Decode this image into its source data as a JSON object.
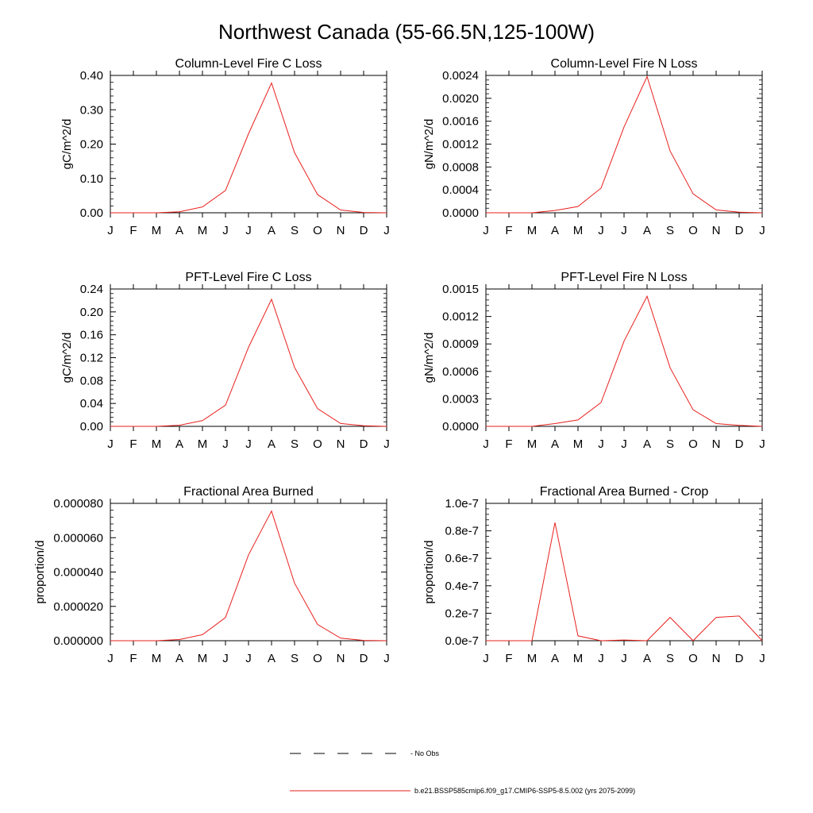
{
  "title": "Northwest Canada (55-66.5N,125-100W)",
  "chart_data": [
    {
      "type": "line",
      "title": "Column-Level Fire C Loss",
      "ylabel": "gC/m^2/d",
      "categories": [
        "J",
        "F",
        "M",
        "A",
        "M",
        "J",
        "J",
        "A",
        "S",
        "O",
        "N",
        "D",
        "J"
      ],
      "yticks": [
        "0.00",
        "0.10",
        "0.20",
        "0.30",
        "0.40"
      ],
      "ylim": [
        0,
        0.4
      ],
      "series": [
        {
          "name": "b.e21.BSSP585cmip6.f09_g17.CMIP6-SSP5-8.5.002 (yrs 2075-2099)",
          "color": "#e8201c",
          "values": [
            0,
            0,
            0,
            0.003,
            0.017,
            0.065,
            0.23,
            0.378,
            0.175,
            0.053,
            0.008,
            0.001,
            0
          ]
        }
      ]
    },
    {
      "type": "line",
      "title": "Column-Level Fire N Loss",
      "ylabel": "gN/m^2/d",
      "categories": [
        "J",
        "F",
        "M",
        "A",
        "M",
        "J",
        "J",
        "A",
        "S",
        "O",
        "N",
        "D",
        "J"
      ],
      "yticks": [
        "0.0000",
        "0.0004",
        "0.0008",
        "0.0012",
        "0.0016",
        "0.0020",
        "0.0024"
      ],
      "ylim": [
        0,
        0.0024
      ],
      "series": [
        {
          "name": "b.e21.BSSP585cmip6.f09_g17.CMIP6-SSP5-8.5.002 (yrs 2075-2099)",
          "color": "#e8201c",
          "values": [
            0,
            0,
            0,
            4e-05,
            0.00011,
            0.00043,
            0.0015,
            0.00238,
            0.00108,
            0.00033,
            5e-05,
            1e-05,
            0
          ]
        }
      ]
    },
    {
      "type": "line",
      "title": "PFT-Level Fire C Loss",
      "ylabel": "gC/m^2/d",
      "categories": [
        "J",
        "F",
        "M",
        "A",
        "M",
        "J",
        "J",
        "A",
        "S",
        "O",
        "N",
        "D",
        "J"
      ],
      "yticks": [
        "0.00",
        "0.04",
        "0.08",
        "0.12",
        "0.16",
        "0.20",
        "0.24"
      ],
      "ylim": [
        0,
        0.24
      ],
      "series": [
        {
          "name": "b.e21.BSSP585cmip6.f09_g17.CMIP6-SSP5-8.5.002 (yrs 2075-2099)",
          "color": "#e8201c",
          "values": [
            0,
            0,
            0,
            0.002,
            0.01,
            0.037,
            0.138,
            0.222,
            0.103,
            0.031,
            0.005,
            0.001,
            0
          ]
        }
      ]
    },
    {
      "type": "line",
      "title": "PFT-Level Fire N Loss",
      "ylabel": "gN/m^2/d",
      "categories": [
        "J",
        "F",
        "M",
        "A",
        "M",
        "J",
        "J",
        "A",
        "S",
        "O",
        "N",
        "D",
        "J"
      ],
      "yticks": [
        "0.0000",
        "0.0003",
        "0.0006",
        "0.0009",
        "0.0012",
        "0.0015"
      ],
      "ylim": [
        0,
        0.0015
      ],
      "series": [
        {
          "name": "b.e21.BSSP585cmip6.f09_g17.CMIP6-SSP5-8.5.002 (yrs 2075-2099)",
          "color": "#e8201c",
          "values": [
            0,
            0,
            0,
            3e-05,
            7e-05,
            0.00026,
            0.00093,
            0.00142,
            0.00064,
            0.00018,
            3e-05,
            1e-05,
            0
          ]
        }
      ]
    },
    {
      "type": "line",
      "title": "Fractional Area Burned",
      "ylabel": "proportion/d",
      "categories": [
        "J",
        "F",
        "M",
        "A",
        "M",
        "J",
        "J",
        "A",
        "S",
        "O",
        "N",
        "D",
        "J"
      ],
      "yticks": [
        "0.000000",
        "0.000020",
        "0.000040",
        "0.000060",
        "0.000080"
      ],
      "ylim": [
        0,
        8e-05
      ],
      "series": [
        {
          "name": "b.e21.BSSP585cmip6.f09_g17.CMIP6-SSP5-8.5.002 (yrs 2075-2099)",
          "color": "#e8201c",
          "values": [
            0,
            0,
            0,
            7e-07,
            3.5e-06,
            1.35e-05,
            5e-05,
            7.55e-05,
            3.35e-05,
            9.5e-06,
            1.5e-06,
            2e-07,
            0
          ]
        }
      ]
    },
    {
      "type": "line",
      "title": "Fractional Area Burned - Crop",
      "ylabel": "proportion/d",
      "categories": [
        "J",
        "F",
        "M",
        "A",
        "M",
        "J",
        "J",
        "A",
        "S",
        "O",
        "N",
        "D",
        "J"
      ],
      "yticks": [
        "0.0e-7",
        "0.2e-7",
        "0.4e-7",
        "0.6e-7",
        "0.8e-7",
        "1.0e-7"
      ],
      "ylim": [
        0,
        1e-07
      ],
      "series": [
        {
          "name": "b.e21.BSSP585cmip6.f09_g17.CMIP6-SSP5-8.5.002 (yrs 2075-2099)",
          "color": "#e8201c",
          "values": [
            0,
            0,
            0,
            8.6e-08,
            3.5e-09,
            0,
            5e-10,
            0,
            1.7e-08,
            0,
            1.7e-08,
            1.8e-08,
            0
          ]
        }
      ]
    }
  ],
  "legend": {
    "entries": [
      {
        "label": "No Obs",
        "style": "dashed",
        "color": "#000000"
      },
      {
        "label": "b.e21.BSSP585cmip6.f09_g17.CMIP6-SSP5-8.5.002 (yrs 2075-2099)",
        "style": "solid",
        "color": "#e8201c"
      }
    ]
  }
}
